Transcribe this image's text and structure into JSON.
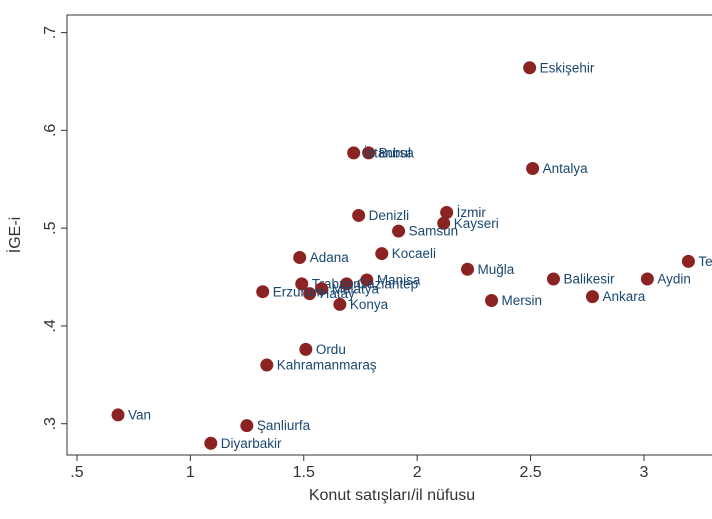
{
  "chart_data": {
    "type": "scatter",
    "xlabel": "Konut satışları/il nüfusu",
    "ylabel": "İGE-i",
    "xlim": [
      0.456,
      3.3
    ],
    "ylim": [
      0.268,
      0.718
    ],
    "xticks": [
      {
        "value": 0.5,
        "label": ".5"
      },
      1,
      1.5,
      2,
      2.5,
      3
    ],
    "yticks": [
      {
        "value": 0.3,
        "label": ".3"
      },
      {
        "value": 0.4,
        "label": ".4"
      },
      {
        "value": 0.5,
        "label": ".5"
      },
      {
        "value": 0.6,
        "label": ".6"
      },
      {
        "value": 0.7,
        "label": ".7"
      }
    ],
    "grid": false,
    "color": "#8b2323",
    "label_color": "#1a476f",
    "labels": [
      "Eskişehir",
      "Bursa",
      "İstanbul",
      "Antalya",
      "Denizli",
      "İzmir",
      "Kayseri",
      "Samsun",
      "Kocaeli",
      "Adana",
      "Muğla",
      "Balikesir",
      "Aydin",
      "Tekirdağ",
      "Ankara",
      "Mersin",
      "Manisa",
      "Gaziantep",
      "Trabzon",
      "Malatya",
      "Hatay",
      "Erzurum",
      "Konya",
      "Ordu",
      "Kahramanmaraş",
      "Van",
      "Şanliurfa",
      "Diyarbakir"
    ],
    "x": [
      2.496,
      1.786,
      1.72,
      2.509,
      1.742,
      2.13,
      2.117,
      1.918,
      1.844,
      1.482,
      2.222,
      2.601,
      3.015,
      3.196,
      2.773,
      2.328,
      1.778,
      1.689,
      1.491,
      1.579,
      1.526,
      1.319,
      1.659,
      1.509,
      1.337,
      0.681,
      1.249,
      1.09
    ],
    "values": [
      0.664,
      0.577,
      0.577,
      0.561,
      0.513,
      0.516,
      0.505,
      0.497,
      0.474,
      0.47,
      0.458,
      0.448,
      0.448,
      0.466,
      0.43,
      0.426,
      0.447,
      0.443,
      0.443,
      0.438,
      0.433,
      0.435,
      0.422,
      0.376,
      0.36,
      0.309,
      0.298,
      0.28
    ]
  }
}
